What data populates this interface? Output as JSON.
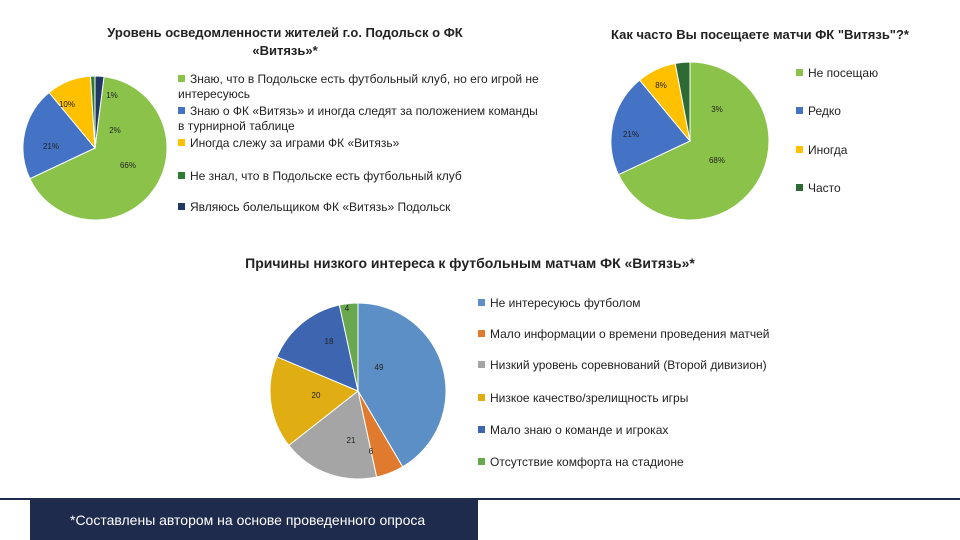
{
  "chart_data": [
    {
      "type": "pie",
      "title": "Уровень осведомленности жителей г.о. Подольск о ФК «Витязь»*",
      "categories": [
        "Знаю, что в Подольске есть футбольный клуб, но его игрой не интересуюсь",
        "Знаю о ФК «Витязь» и иногда следят за положением команды в турнирной таблице",
        "Иногда слежу за играми ФК «Витязь»",
        "Не знал, что в Подольске есть футбольный клуб",
        "Являюсь болельщиком ФК «Витязь» Подольск"
      ],
      "values": [
        66,
        21,
        10,
        1,
        2
      ],
      "data_labels": [
        "66%",
        "21%",
        "10%",
        "1%",
        "2%"
      ],
      "colors": [
        "#8bc34a",
        "#4472c4",
        "#ffc000",
        "#2e7d32",
        "#1f3864"
      ],
      "legend_position": "right"
    },
    {
      "type": "pie",
      "title": "Как часто Вы посещаете матчи ФК \"Витязь\"?*",
      "categories": [
        "Не посещаю",
        "Редко",
        "Иногда",
        "Часто"
      ],
      "values": [
        68,
        21,
        8,
        3
      ],
      "data_labels": [
        "68%",
        "21%",
        "8%",
        "3%"
      ],
      "colors": [
        "#8bc34a",
        "#4472c4",
        "#ffc000",
        "#2e6b34"
      ],
      "legend_position": "right"
    },
    {
      "type": "pie",
      "title": "Причины низкого интереса к футбольным матчам ФК «Витязь»*",
      "categories": [
        "Не интересуюсь футболом",
        "Мало информации о времени проведения матчей",
        "Низкий уровень соревнований (Второй дивизион)",
        "Низкое качество/зрелищность игры",
        "Мало знаю о команде и игроках",
        "Отсутствие комфорта на стадионе"
      ],
      "values": [
        49,
        6,
        21,
        20,
        18,
        4
      ],
      "data_labels": [
        "49",
        "6",
        "21",
        "20",
        "18",
        "4"
      ],
      "colors": [
        "#5b8fc5",
        "#e07a2f",
        "#a5a5a5",
        "#e0ad12",
        "#3d65b0",
        "#6aa84f"
      ],
      "legend_position": "right"
    }
  ],
  "footer": {
    "note": "*Составлены автором на основе проведенного опроса"
  }
}
